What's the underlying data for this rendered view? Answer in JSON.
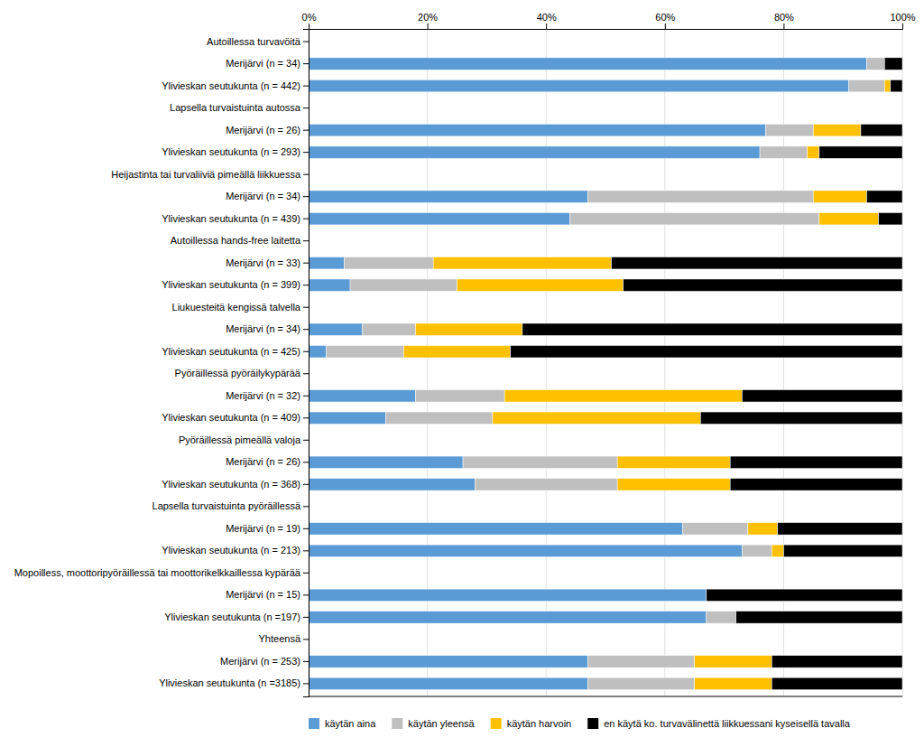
{
  "chart_data": {
    "type": "bar",
    "orientation": "horizontal",
    "stacked": true,
    "grid": true,
    "legend": "bottom",
    "categories": [
      "Autoillessa turvavöitä",
      "Merijärvi (n = 34)",
      "Ylivieskan seutukunta (n = 442)",
      "Lapsella turvaistuinta autossa",
      "Merijärvi (n = 26)",
      "Ylivieskan seutukunta (n = 293)",
      "Heijastinta tai turvaliiviä pimeällä liikkuessa",
      "Merijärvi (n = 34)",
      "Ylivieskan seutukunta (n = 439)",
      "Autoillessa hands-free laitetta",
      "Merijärvi (n = 33)",
      "Ylivieskan seutukunta (n = 399)",
      "Liukuesteitä kengissä talvella",
      "Merijärvi (n = 34)",
      "Ylivieskan seutukunta (n = 425)",
      "Pyöräillessä pyöräilykypärää",
      "Merijärvi (n = 32)",
      "Ylivieskan seutukunta (n = 409)",
      "Pyöräillessä pimeällä valoja",
      "Merijärvi (n = 26)",
      "Ylivieskan seutukunta (n = 368)",
      "Lapsella turvaistuinta pyöräillessä",
      "Merijärvi (n = 19)",
      "Ylivieskan seutukunta (n = 213)",
      "Mopoilless, moottoripyöräillessä tai moottorikelkkaillessa kypärää",
      "Merijärvi (n = 15)",
      "Ylivieskan seutukunta (n =197)",
      "Yhteensä",
      "Merijärvi (n = 253)",
      "Ylivieskan seutukunta (n =3185)"
    ],
    "series": [
      {
        "name": "käytän aina",
        "color": "#5b9bd5",
        "values": [
          0,
          94,
          91,
          0,
          77,
          76,
          0,
          47,
          44,
          0,
          6,
          7,
          0,
          9,
          3,
          0,
          18,
          13,
          0,
          26,
          28,
          0,
          63,
          73,
          0,
          67,
          67,
          0,
          47,
          47
        ]
      },
      {
        "name": "käytän yleensä",
        "color": "#bfbfbf",
        "values": [
          0,
          3,
          6,
          0,
          8,
          8,
          0,
          38,
          42,
          0,
          15,
          18,
          0,
          9,
          13,
          0,
          15,
          18,
          0,
          26,
          24,
          0,
          11,
          5,
          0,
          0,
          5,
          0,
          18,
          18
        ]
      },
      {
        "name": "käytän harvoin",
        "color": "#ffc000",
        "values": [
          0,
          0,
          1,
          0,
          8,
          2,
          0,
          9,
          10,
          0,
          30,
          28,
          0,
          18,
          18,
          0,
          40,
          35,
          0,
          19,
          19,
          0,
          5,
          2,
          0,
          0,
          0,
          0,
          13,
          13
        ]
      },
      {
        "name": "en käytä ko. turvavälinettä liikkuessani kyseisellä tavalla",
        "color": "#000000",
        "values": [
          0,
          3,
          2,
          0,
          7,
          14,
          0,
          6,
          4,
          0,
          49,
          47,
          0,
          64,
          66,
          0,
          27,
          34,
          0,
          29,
          29,
          0,
          21,
          20,
          0,
          33,
          28,
          0,
          22,
          22
        ]
      }
    ],
    "xlim": [
      0,
      100
    ],
    "xticks": [
      {
        "value": 0,
        "label": "0%"
      },
      {
        "value": 20,
        "label": "20%"
      },
      {
        "value": 40,
        "label": "40%"
      },
      {
        "value": 60,
        "label": "60%"
      },
      {
        "value": 80,
        "label": "80%"
      },
      {
        "value": 100,
        "label": "100%"
      }
    ]
  }
}
